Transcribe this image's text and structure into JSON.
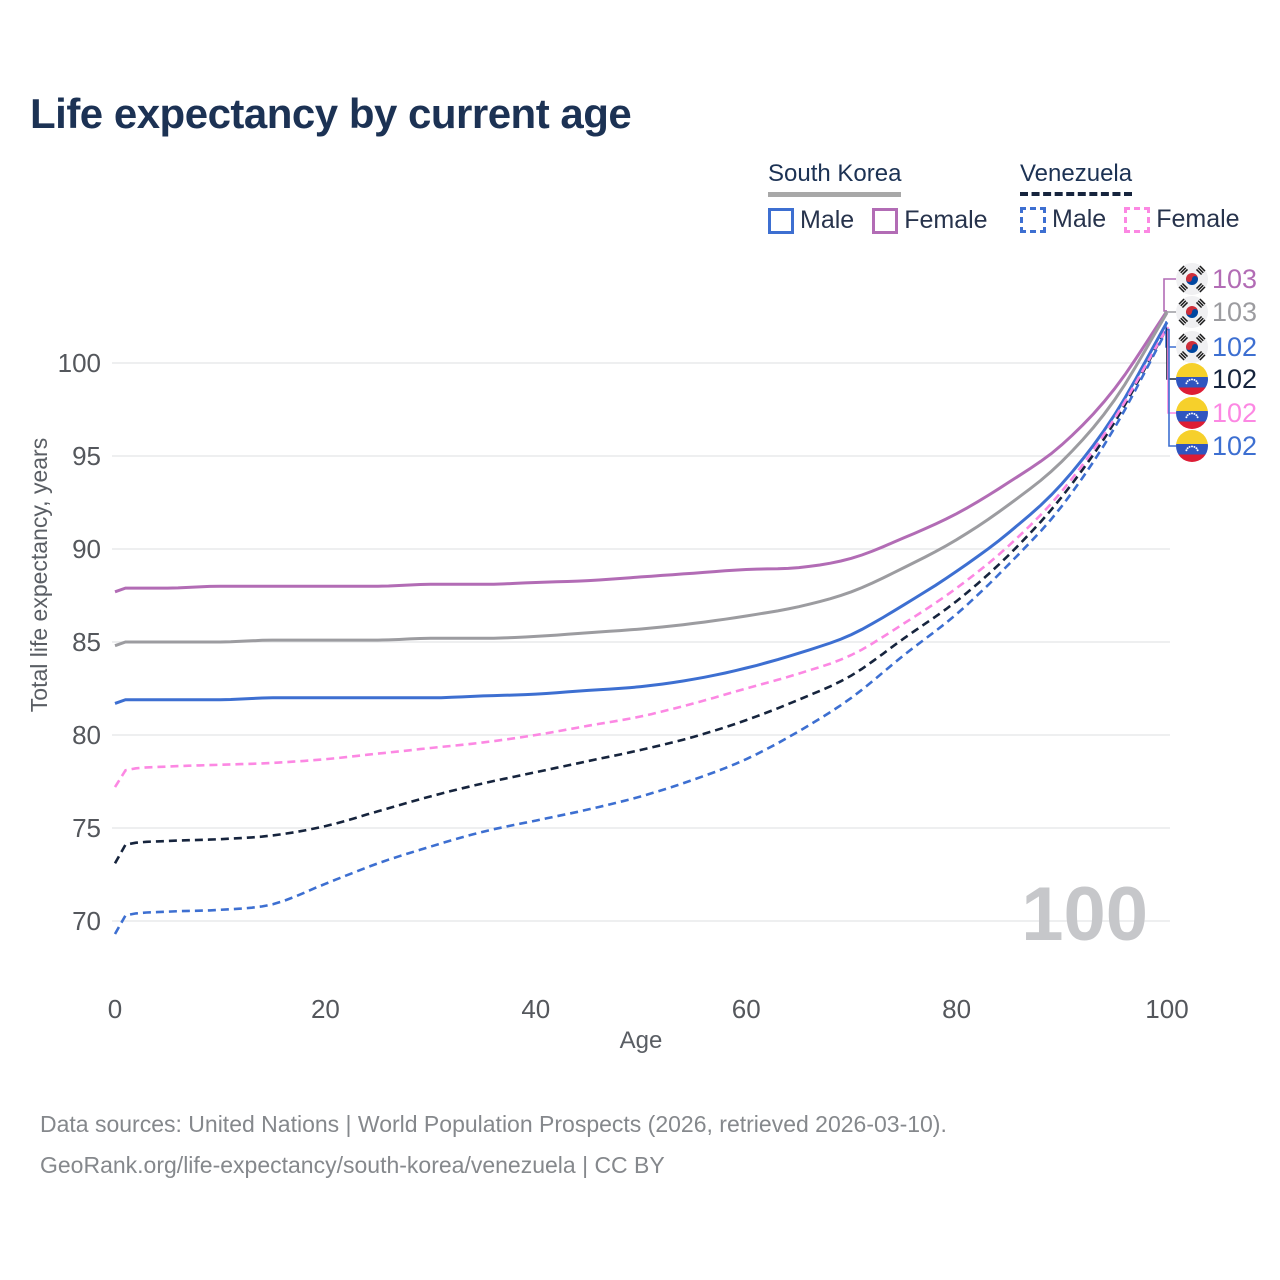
{
  "title": "Life expectancy by current age",
  "legend": {
    "groups": [
      {
        "label": "South Korea",
        "line_style": "solid",
        "color": "#9c9ca0",
        "items": [
          {
            "label": "Male",
            "color": "#3d6fd1",
            "line_style": "solid"
          },
          {
            "label": "Female",
            "color": "#b26cb5",
            "line_style": "solid"
          }
        ]
      },
      {
        "label": "Venezuela",
        "line_style": "dashed",
        "color": "#16243d",
        "items": [
          {
            "label": "Male",
            "color": "#3d6fd1",
            "line_style": "dashed"
          },
          {
            "label": "Female",
            "color": "#fc88e3",
            "line_style": "dashed"
          }
        ]
      }
    ]
  },
  "chart_data": {
    "type": "line",
    "title": "Life expectancy by current age",
    "xlabel": "Age",
    "ylabel": "Total life expectancy, years",
    "xlim": [
      0,
      100
    ],
    "ylim": [
      67.5,
      105
    ],
    "x_ticks": [
      0,
      20,
      40,
      60,
      80,
      100
    ],
    "y_ticks": [
      70,
      75,
      80,
      85,
      90,
      95,
      100
    ],
    "grid": "horizontal",
    "legend_position": "top-right",
    "watermark": "100",
    "x": [
      0,
      1,
      5,
      10,
      15,
      20,
      25,
      30,
      35,
      40,
      45,
      50,
      55,
      60,
      65,
      70,
      75,
      80,
      85,
      90,
      95,
      100
    ],
    "series": [
      {
        "name": "South Korea Female",
        "country": "South Korea",
        "sex": "Female",
        "line_style": "solid",
        "color": "#b26cb5",
        "flag": "KR",
        "end_label": "103",
        "values": [
          87.7,
          87.9,
          87.9,
          88.0,
          88.0,
          88.0,
          88.0,
          88.1,
          88.1,
          88.2,
          88.3,
          88.5,
          88.7,
          88.9,
          89.0,
          89.5,
          90.6,
          91.9,
          93.6,
          95.6,
          98.6,
          102.8
        ]
      },
      {
        "name": "South Korea Both sexes",
        "country": "South Korea",
        "sex": "Both",
        "line_style": "solid",
        "color": "#9c9ca0",
        "flag": "KR",
        "end_label": "103",
        "values": [
          84.8,
          85.0,
          85.0,
          85.0,
          85.1,
          85.1,
          85.1,
          85.2,
          85.2,
          85.3,
          85.5,
          85.7,
          86.0,
          86.4,
          86.9,
          87.7,
          89.0,
          90.5,
          92.4,
          94.7,
          98.0,
          102.7
        ]
      },
      {
        "name": "South Korea Male",
        "country": "South Korea",
        "sex": "Male",
        "line_style": "solid",
        "color": "#3d6fd1",
        "flag": "KR",
        "end_label": "102",
        "values": [
          81.7,
          81.9,
          81.9,
          81.9,
          82.0,
          82.0,
          82.0,
          82.0,
          82.1,
          82.2,
          82.4,
          82.6,
          83.0,
          83.6,
          84.4,
          85.4,
          87.0,
          88.8,
          90.9,
          93.5,
          97.2,
          102.2
        ]
      },
      {
        "name": "Venezuela Both sexes",
        "country": "Venezuela",
        "sex": "Both",
        "line_style": "dashed",
        "color": "#16243d",
        "flag": "VE",
        "end_label": "102",
        "values": [
          73.1,
          74.1,
          74.3,
          74.4,
          74.6,
          75.1,
          75.9,
          76.7,
          77.4,
          78.0,
          78.6,
          79.2,
          79.9,
          80.8,
          81.9,
          83.2,
          85.2,
          87.2,
          89.7,
          92.8,
          96.8,
          101.9
        ]
      },
      {
        "name": "Venezuela Female",
        "country": "Venezuela",
        "sex": "Female",
        "line_style": "dashed",
        "color": "#fc88e3",
        "flag": "VE",
        "end_label": "102",
        "values": [
          77.2,
          78.1,
          78.3,
          78.4,
          78.5,
          78.7,
          79.0,
          79.3,
          79.6,
          80.0,
          80.5,
          81.0,
          81.7,
          82.5,
          83.3,
          84.3,
          86.0,
          87.9,
          90.2,
          93.1,
          97.0,
          101.9
        ]
      },
      {
        "name": "Venezuela Male",
        "country": "Venezuela",
        "sex": "Male",
        "line_style": "dashed",
        "color": "#3d6fd1",
        "flag": "VE",
        "end_label": "102",
        "values": [
          69.3,
          70.3,
          70.5,
          70.6,
          70.9,
          72.0,
          73.1,
          74.0,
          74.8,
          75.4,
          76.0,
          76.7,
          77.6,
          78.7,
          80.2,
          82.0,
          84.3,
          86.5,
          89.2,
          92.3,
          96.5,
          101.8
        ]
      }
    ]
  },
  "footer": {
    "line1": "Data sources: United Nations | World Population Prospects (2026, retrieved 2026-03-10).",
    "line2": "GeoRank.org/life-expectancy/south-korea/venezuela | CC BY"
  }
}
